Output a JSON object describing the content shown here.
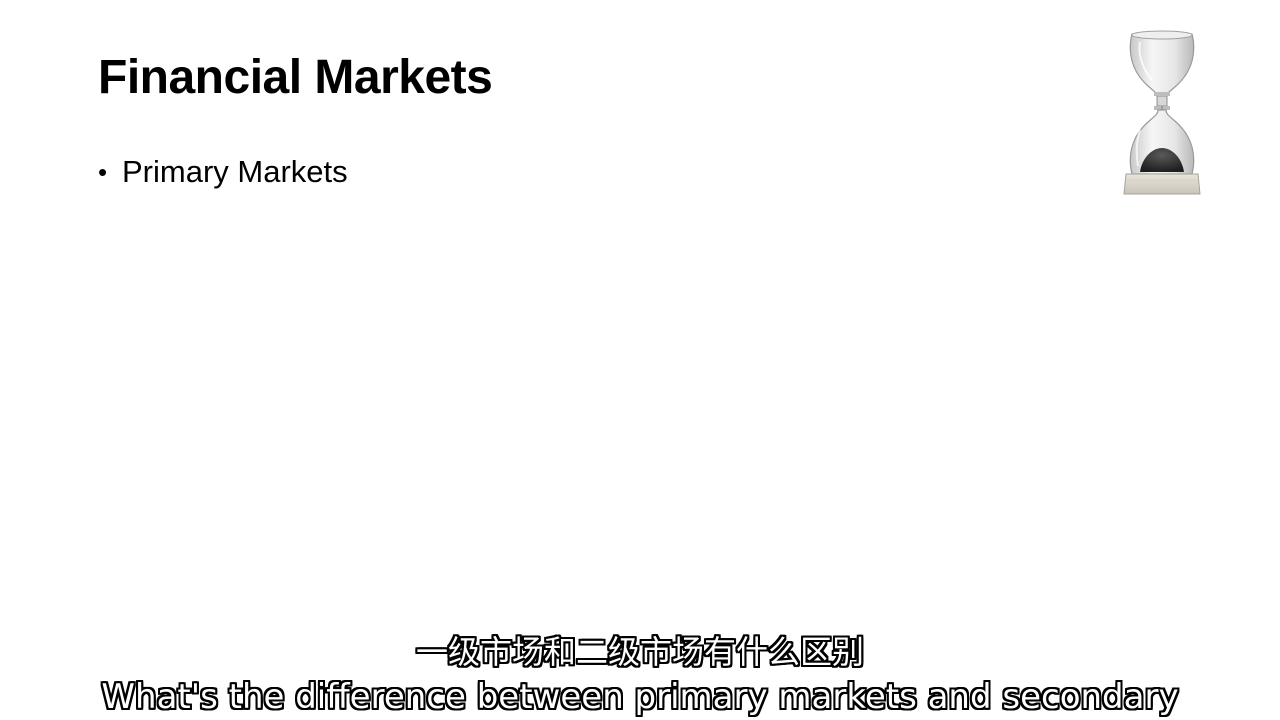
{
  "slide": {
    "title": "Financial Markets",
    "bullets": [
      {
        "marker": "•",
        "text": "Primary Markets"
      }
    ]
  },
  "image": {
    "icon": "hourglass-icon"
  },
  "subtitles": {
    "chinese": "一级市场和二级市场有什么区别",
    "english": "What's the difference between primary markets and secondary"
  }
}
